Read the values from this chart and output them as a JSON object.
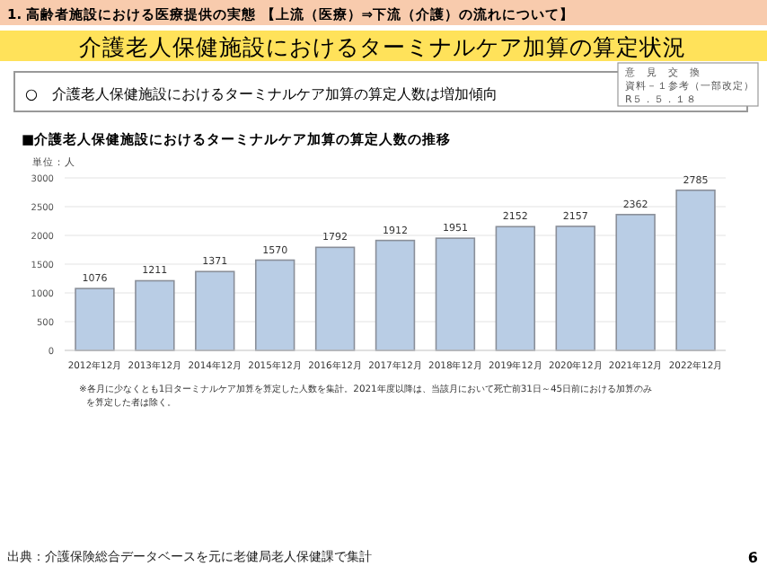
{
  "chart_data": {
    "type": "bar",
    "title": "介護老人保健施設におけるターミナルケア加算の算定状況",
    "subtitle": "■介護老人保健施設におけるターミナルケア加算の算定人数の推移",
    "ylabel": "単位：人",
    "categories": [
      "2012年12月",
      "2013年12月",
      "2014年12月",
      "2015年12月",
      "2016年12月",
      "2017年12月",
      "2018年12月",
      "2019年12月",
      "2020年12月",
      "2021年12月",
      "2022年12月"
    ],
    "values": [
      1076,
      1211,
      1371,
      1570,
      1792,
      1912,
      1951,
      2152,
      2157,
      2362,
      2785
    ],
    "color": "#b9cde5",
    "ylim": [
      0,
      3000
    ],
    "yticks": [
      0,
      500,
      1000,
      1500,
      2000,
      2500,
      3000
    ],
    "grid": "y",
    "data_labels": true,
    "annotations": [
      "1. 高齢者施設における医療提供の実態 【上流（医療）⇒下流（介護）の流れについて】",
      "○　介護老人保健施設におけるターミナルケア加算の算定人数は増加傾向",
      "意　見　交　換",
      "資料－１参考（一部改定）",
      "R５．５．１８",
      "※各月に少なくとも1日ターミナルケア加算を算定した人数を集計。2021年度以降は、当該月において死亡前31日～45日前における加算のみを算定した者は除く。",
      "出典：介護保険総合データベースを元に老健局老人保健課で集計",
      "6"
    ]
  }
}
